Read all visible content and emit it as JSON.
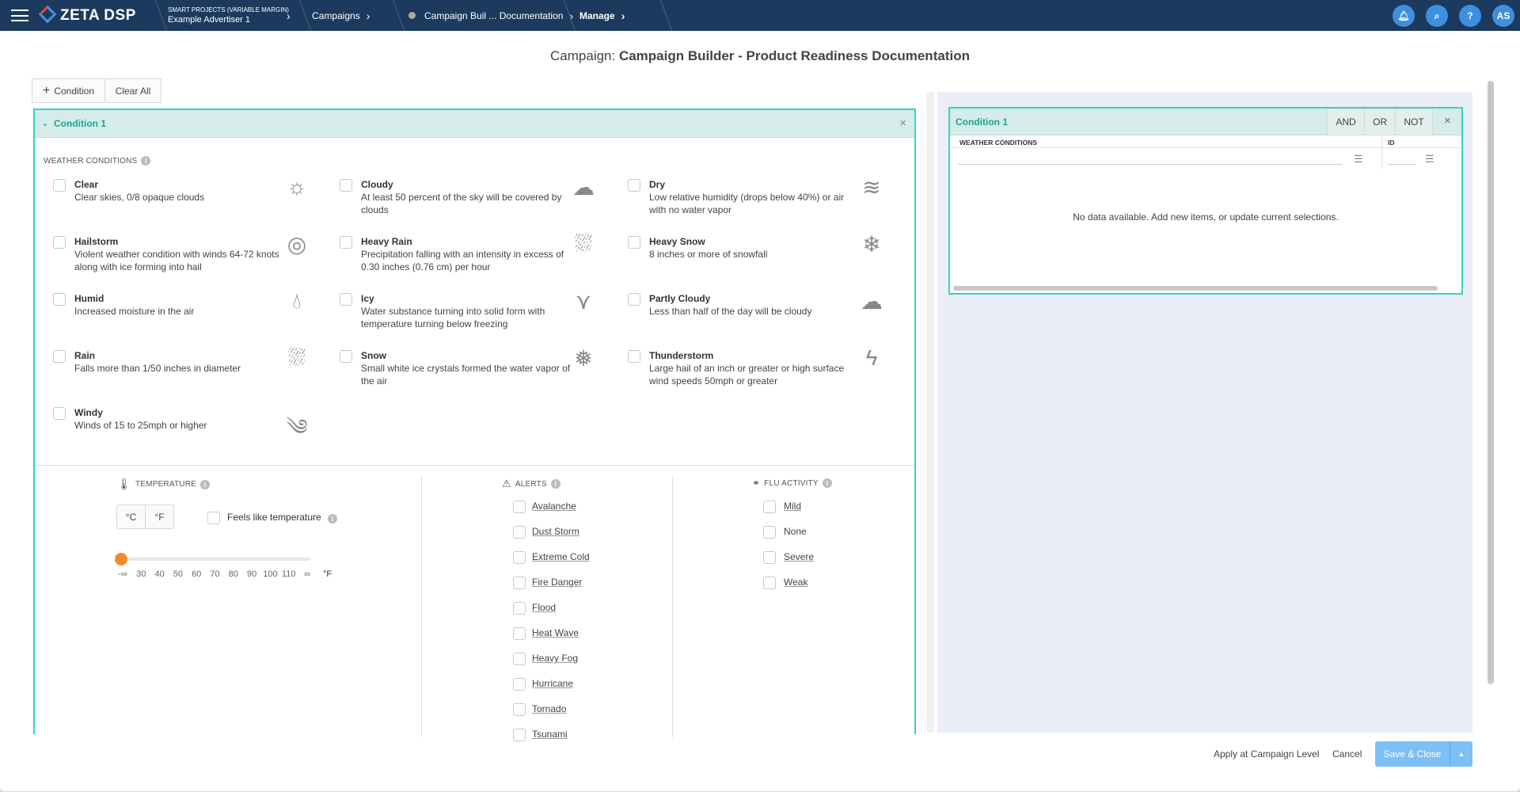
{
  "topbar": {
    "app": "ZETA DSP",
    "crumbs": [
      {
        "label": "SMART PROJECTS (VARIABLE MARGIN)",
        "sub": "Example Advertiser 1"
      },
      {
        "label": "Campaigns"
      },
      {
        "label": "Campaign Buil ... Documentation"
      },
      {
        "label": "Manage"
      }
    ],
    "avatar": "AS",
    "accent": "#1c3a5e"
  },
  "header": {
    "prefix": "Campaign: ",
    "title": "Campaign Builder - Product Readiness Documentation"
  },
  "toolbar": {
    "add_condition": "Condition",
    "clear_all": "Clear All"
  },
  "condition": {
    "title": "Condition 1",
    "weather_label": "WEATHER CONDITIONS",
    "weather": [
      {
        "name": "Clear",
        "desc": "Clear skies, 0/8 opaque clouds",
        "icon": "sun-icon"
      },
      {
        "name": "Cloudy",
        "desc": "At least 50 percent of the sky will be covered by clouds",
        "icon": "cloud-icon"
      },
      {
        "name": "Dry",
        "desc": "Low relative humidity (drops below 40%) or air with no water vapor",
        "icon": "heat-waves-icon"
      },
      {
        "name": "Hailstorm",
        "desc": "Violent weather condition with winds 64-72 knots along with ice forming into hail",
        "icon": "hail-icon"
      },
      {
        "name": "Heavy Rain",
        "desc": "Precipitation falling with an intensity in excess of 0.30 inches (0.76 cm) per hour",
        "icon": "heavy-rain-icon"
      },
      {
        "name": "Heavy Snow",
        "desc": "8 inches or more of snowfall",
        "icon": "snow-wind-icon"
      },
      {
        "name": "Humid",
        "desc": "Increased moisture in the air",
        "icon": "droplet-icon"
      },
      {
        "name": "Icy",
        "desc": "Water substance turning into solid form with temperature turning below freezing",
        "icon": "icicle-icon"
      },
      {
        "name": "Partly Cloudy",
        "desc": "Less than half of the day will be cloudy",
        "icon": "cloud-outline-icon"
      },
      {
        "name": "Rain",
        "desc": "Falls more than 1/50 inches in diameter",
        "icon": "rain-icon"
      },
      {
        "name": "Snow",
        "desc": "Small white ice crystals formed the water vapor of the air",
        "icon": "snow-cloud-icon"
      },
      {
        "name": "Thunderstorm",
        "desc": "Large hail of an inch or greater or high surface wind speeds 50mph or greater",
        "icon": "thunder-icon"
      },
      {
        "name": "Windy",
        "desc": "Winds of 15 to 25mph or higher",
        "icon": "wind-icon"
      }
    ],
    "temperature": {
      "label": "TEMPERATURE",
      "units": [
        "°C",
        "°F"
      ],
      "feels_like": "Feels like temperature",
      "ticks": [
        "-∞",
        "30",
        "40",
        "50",
        "60",
        "70",
        "80",
        "90",
        "100",
        "110",
        "∞"
      ],
      "unit_label": "°F",
      "slider_value": "-∞",
      "slider_color": "#f08a2c"
    },
    "alerts": {
      "label": "ALERTS",
      "items": [
        "Avalanche",
        "Dust Storm",
        "Extreme Cold",
        "Fire Danger",
        "Flood",
        "Heat Wave",
        "Heavy Fog",
        "Hurricane",
        "Tornado",
        "Tsunami"
      ]
    },
    "flu": {
      "label": "FLU ACTIVITY",
      "items": [
        "Mild",
        "None",
        "Severe",
        "Weak"
      ]
    }
  },
  "summary": {
    "title": "Condition 1",
    "ops": [
      "AND",
      "OR",
      "NOT"
    ],
    "columns": [
      "WEATHER CONDITIONS",
      "ID"
    ],
    "empty": "No data available. Add new items, or update current selections."
  },
  "footer": {
    "apply": "Apply at Campaign Level",
    "cancel": "Cancel",
    "save": "Save & Close",
    "save_color": "#7cc0f5"
  }
}
